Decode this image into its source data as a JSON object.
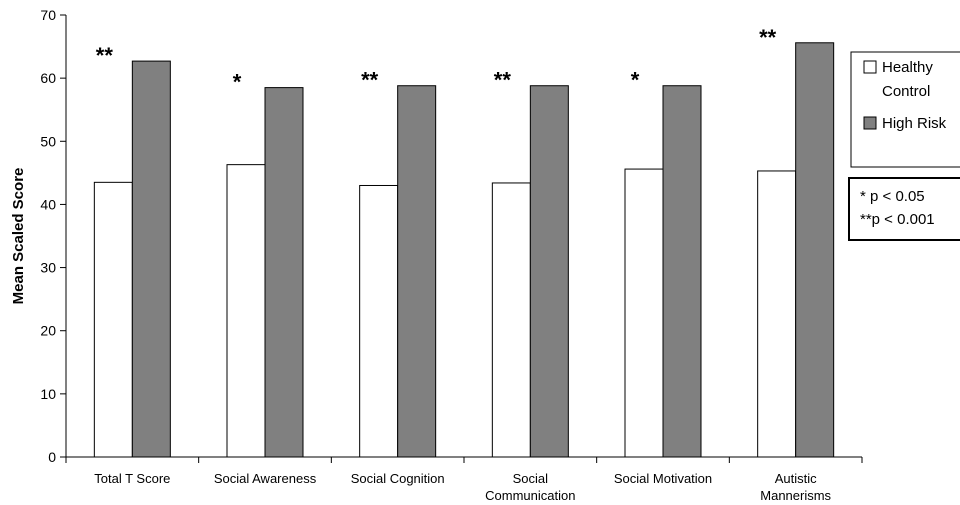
{
  "chart_data": {
    "type": "bar",
    "ylabel": "Mean Scaled Score",
    "xlabel": "",
    "ylim": [
      0,
      70
    ],
    "yticks": [
      0,
      10,
      20,
      30,
      40,
      50,
      60,
      70
    ],
    "grid": false,
    "categories": [
      [
        "Total T Score"
      ],
      [
        "Social Awareness"
      ],
      [
        "Social Cognition"
      ],
      [
        "Social",
        "Communication"
      ],
      [
        "Social Motivation"
      ],
      [
        "Autistic",
        "Mannerisms"
      ]
    ],
    "series": [
      {
        "name": "Healthy Control",
        "color": "#ffffff",
        "values": [
          43.5,
          46.3,
          43.0,
          43.4,
          45.6,
          45.3
        ]
      },
      {
        "name": "High Risk",
        "color": "#808080",
        "values": [
          62.7,
          58.5,
          58.8,
          58.8,
          58.8,
          65.6
        ]
      }
    ],
    "significance": [
      "**",
      "*",
      "**",
      "**",
      "*",
      "**"
    ],
    "legend": {
      "placement": "right",
      "entries": [
        {
          "lines": [
            "Healthy",
            "Control"
          ],
          "color": "#ffffff"
        },
        {
          "lines": [
            "High Risk"
          ],
          "color": "#808080"
        }
      ]
    },
    "annotation": [
      "* p < 0.05",
      "**p < 0.001"
    ]
  }
}
